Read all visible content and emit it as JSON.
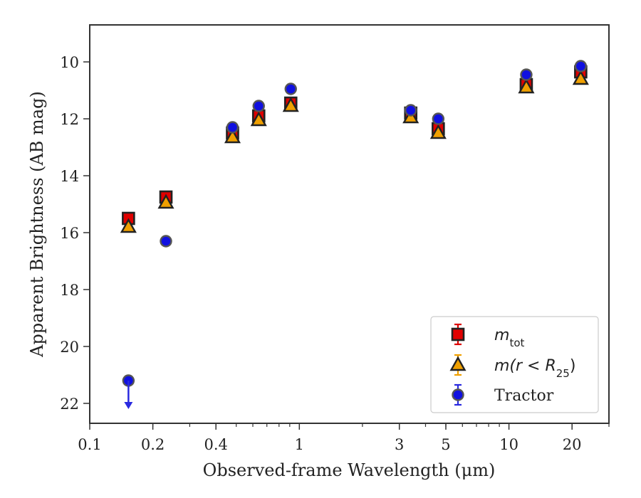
{
  "chart_data": {
    "type": "scatter",
    "xlabel": "Observed-frame Wavelength (μm)",
    "ylabel": "Apparent Brightness (AB mag)",
    "x_scale": "log",
    "xlim": [
      0.1,
      30
    ],
    "ylim": [
      22.7,
      8.7
    ],
    "y_inverted": true,
    "x_ticks": [
      {
        "value": 0.1,
        "label": "0.1"
      },
      {
        "value": 0.2,
        "label": "0.2"
      },
      {
        "value": 0.4,
        "label": "0.4"
      },
      {
        "value": 1,
        "label": "1"
      },
      {
        "value": 3,
        "label": "3"
      },
      {
        "value": 5,
        "label": "5"
      },
      {
        "value": 10,
        "label": "10"
      },
      {
        "value": 20,
        "label": "20"
      }
    ],
    "y_ticks": [
      {
        "value": 10,
        "label": "10"
      },
      {
        "value": 12,
        "label": "12"
      },
      {
        "value": 14,
        "label": "14"
      },
      {
        "value": 16,
        "label": "16"
      },
      {
        "value": 18,
        "label": "18"
      },
      {
        "value": 20,
        "label": "20"
      },
      {
        "value": 22,
        "label": "22"
      }
    ],
    "grid": false,
    "legend_position": "lower-right",
    "series": [
      {
        "name": "m_tot",
        "legend_main": "m",
        "legend_sub": "tot",
        "marker": "square",
        "fill": "#e00000",
        "errcolor": "#dd0000",
        "points": [
          {
            "x": 0.153,
            "y": 15.5
          },
          {
            "x": 0.231,
            "y": 14.75
          },
          {
            "x": 0.48,
            "y": 12.5
          },
          {
            "x": 0.64,
            "y": 11.9
          },
          {
            "x": 0.91,
            "y": 11.45
          },
          {
            "x": 3.4,
            "y": 11.8
          },
          {
            "x": 4.6,
            "y": 12.35
          },
          {
            "x": 12.1,
            "y": 10.8
          },
          {
            "x": 22.0,
            "y": 10.35
          }
        ]
      },
      {
        "name": "m(r < R_25)",
        "legend_main": "m(r < R",
        "legend_sub": "25",
        "legend_tail": ")",
        "marker": "triangle",
        "fill": "#f0a000",
        "errcolor": "#f0a000",
        "points": [
          {
            "x": 0.153,
            "y": 15.8
          },
          {
            "x": 0.231,
            "y": 14.95
          },
          {
            "x": 0.48,
            "y": 12.65
          },
          {
            "x": 0.64,
            "y": 12.05
          },
          {
            "x": 0.91,
            "y": 11.55
          },
          {
            "x": 3.4,
            "y": 11.95
          },
          {
            "x": 4.6,
            "y": 12.5
          },
          {
            "x": 12.1,
            "y": 10.9
          },
          {
            "x": 22.0,
            "y": 10.6
          }
        ]
      },
      {
        "name": "Tractor",
        "legend_main": "Tractor",
        "marker": "circle",
        "fill": "#1010e0",
        "errcolor": "#2a2ae0",
        "points": [
          {
            "x": 0.153,
            "y": 21.2,
            "upper_limit": true
          },
          {
            "x": 0.231,
            "y": 16.3
          },
          {
            "x": 0.48,
            "y": 12.3
          },
          {
            "x": 0.64,
            "y": 11.55
          },
          {
            "x": 0.91,
            "y": 10.95
          },
          {
            "x": 3.4,
            "y": 11.7
          },
          {
            "x": 4.6,
            "y": 12.0
          },
          {
            "x": 12.1,
            "y": 10.45
          },
          {
            "x": 22.0,
            "y": 10.15
          }
        ]
      }
    ]
  }
}
